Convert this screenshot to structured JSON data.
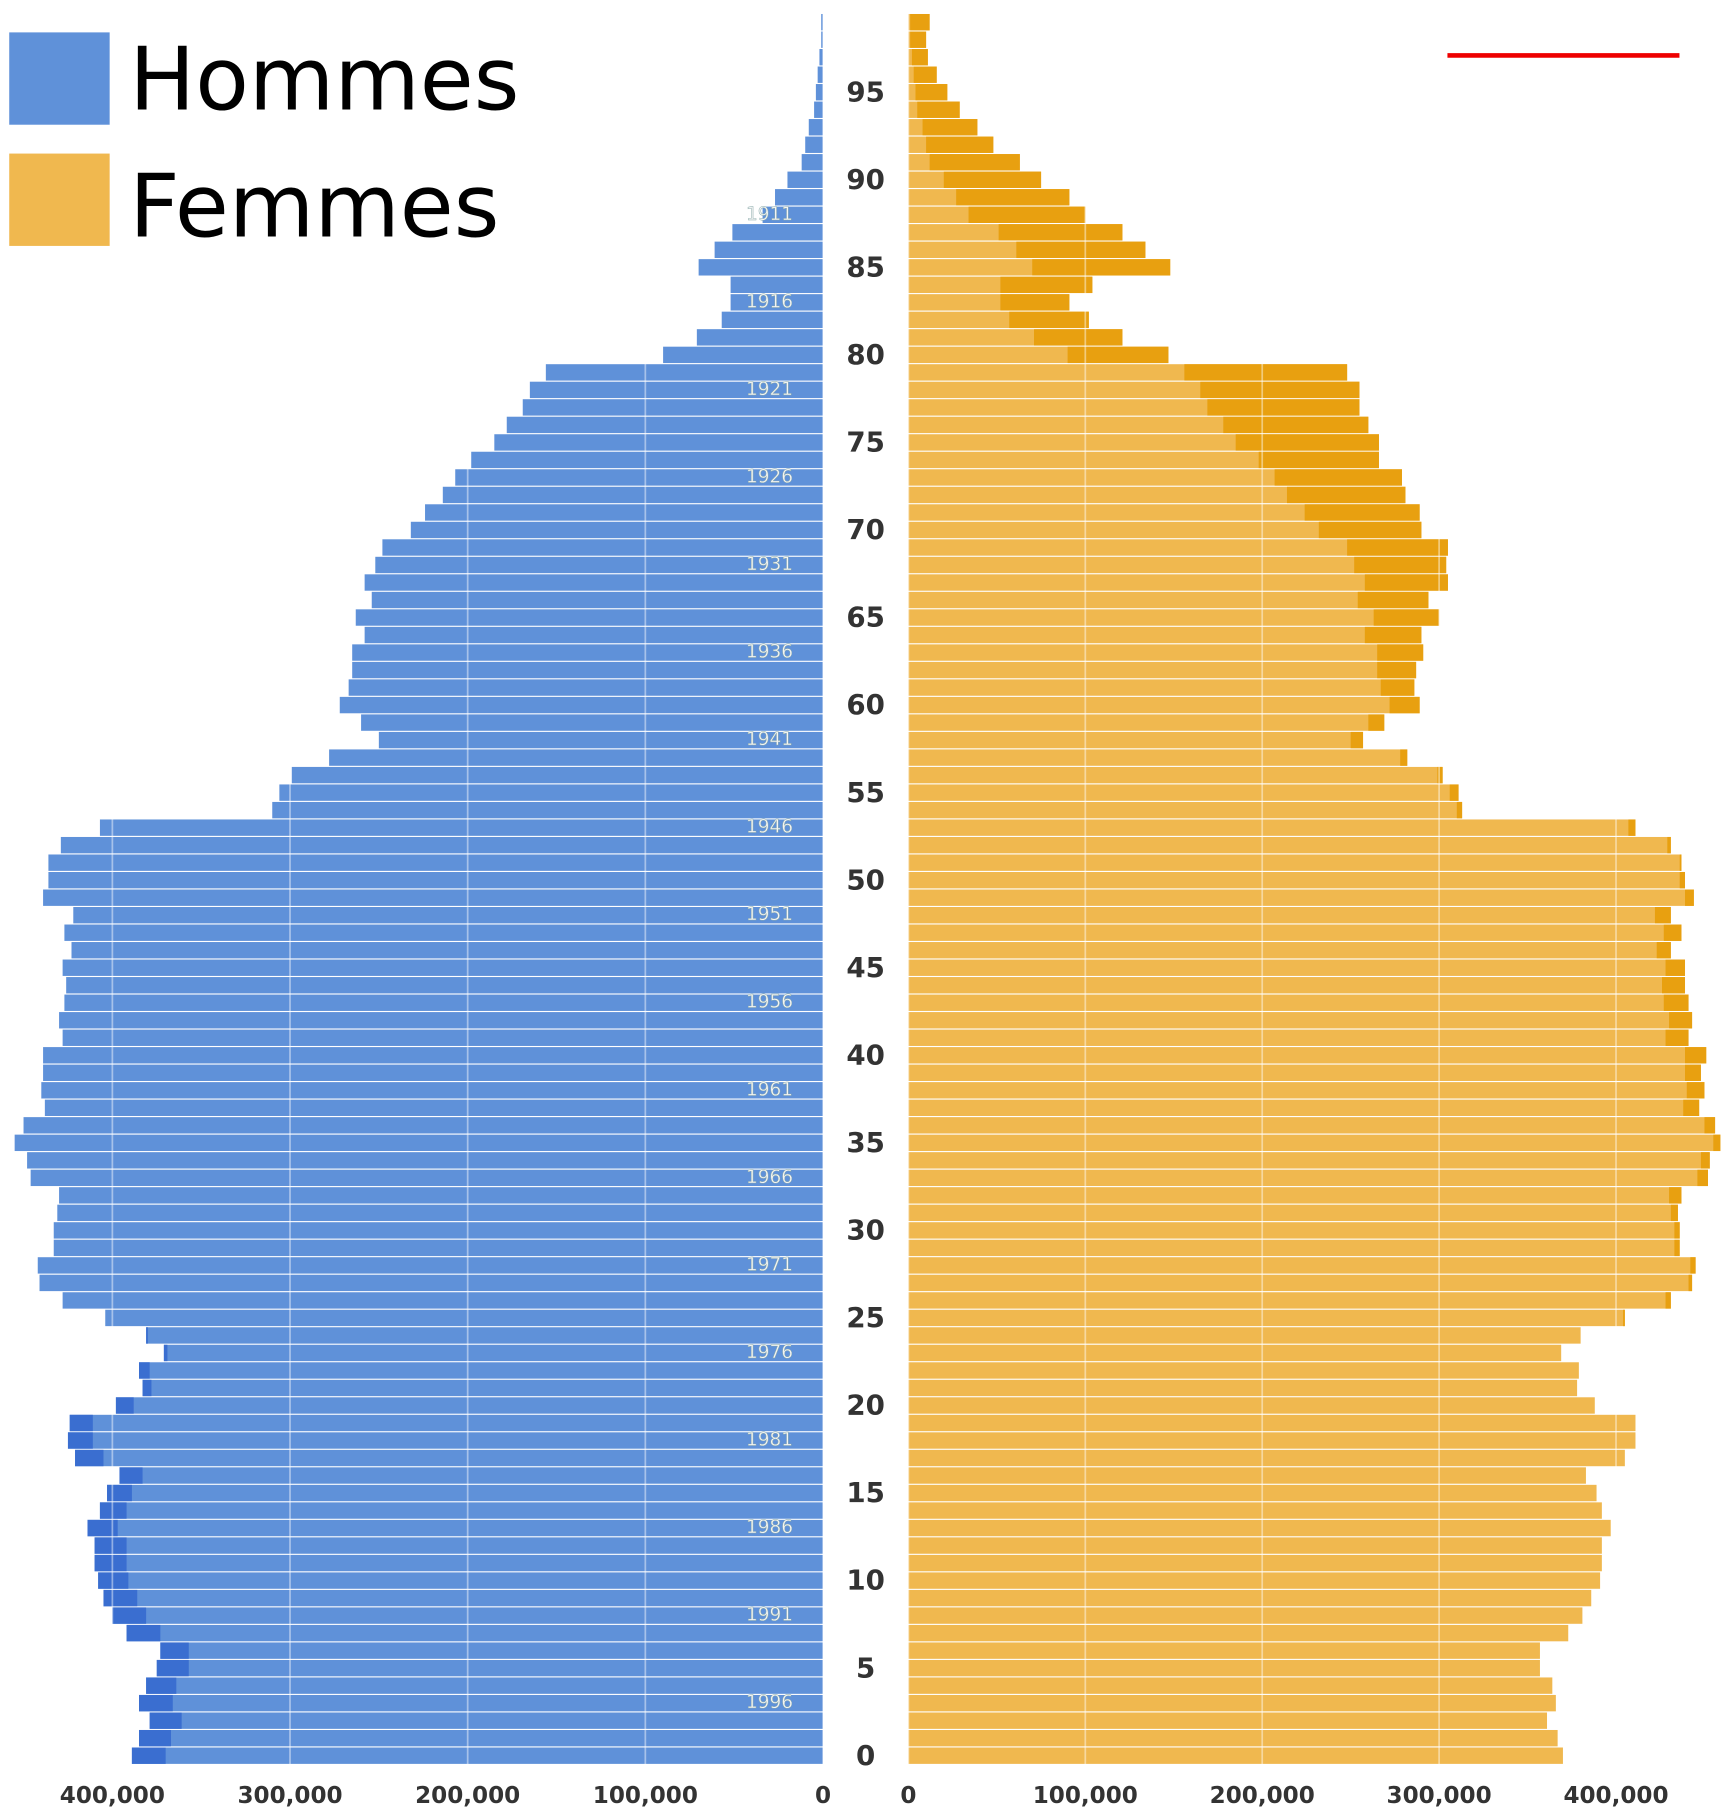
{
  "chart_data": {
    "type": "pyramid",
    "categories": [
      "0",
      null,
      null,
      null,
      null,
      "5",
      null,
      null,
      null,
      null,
      "10",
      null,
      null,
      null,
      null,
      "15",
      null,
      null,
      null,
      null,
      "20",
      null,
      null,
      null,
      null,
      "25",
      null,
      null,
      null,
      null,
      "30",
      null,
      null,
      null,
      null,
      "35",
      null,
      null,
      null,
      null,
      "40",
      null,
      null,
      null,
      null,
      "45",
      null,
      null,
      null,
      null,
      "50",
      null,
      null,
      null,
      null,
      "55",
      null,
      null,
      null,
      null,
      "60",
      null,
      null,
      null,
      null,
      "65",
      null,
      null,
      null,
      null,
      "70",
      null,
      null,
      null,
      null,
      "75",
      null,
      null,
      null,
      null,
      "80",
      null,
      null,
      null,
      null,
      "85",
      null,
      null,
      null,
      null,
      "90",
      null,
      null,
      null,
      null,
      "95",
      null,
      null,
      null,
      null
    ],
    "birth_year_labels": [
      null,
      null,
      null,
      "1996",
      null,
      null,
      null,
      null,
      "1991",
      null,
      null,
      null,
      null,
      "1986",
      null,
      null,
      null,
      null,
      "1981",
      null,
      null,
      null,
      null,
      "1976",
      null,
      null,
      null,
      null,
      "1971",
      null,
      null,
      null,
      null,
      "1966",
      null,
      null,
      null,
      null,
      "1961",
      null,
      null,
      null,
      null,
      "1956",
      null,
      null,
      null,
      null,
      "1951",
      null,
      null,
      null,
      null,
      "1946",
      null,
      null,
      null,
      null,
      "1941",
      null,
      null,
      null,
      null,
      "1936",
      null,
      null,
      null,
      null,
      "1931",
      null,
      null,
      null,
      null,
      "1926",
      null,
      null,
      null,
      null,
      "1921",
      null,
      null,
      null,
      null,
      "1916",
      null,
      null,
      null,
      null,
      "1911",
      null,
      null,
      null,
      null,
      null,
      null,
      null,
      null,
      null,
      null,
      null
    ],
    "series": [
      {
        "name": "Hommes",
        "color": "#5f91d9",
        "excess_color": "#3a6ed0",
        "side": "left",
        "values": [
          389000,
          385000,
          379000,
          385000,
          381000,
          375000,
          373000,
          392000,
          400000,
          405000,
          408000,
          410000,
          410000,
          414000,
          407000,
          403000,
          396000,
          421000,
          425000,
          424000,
          398000,
          383000,
          385000,
          371000,
          381000,
          404000,
          428000,
          441000,
          442000,
          433000,
          433000,
          431000,
          430000,
          446000,
          448000,
          455000,
          450000,
          438000,
          440000,
          439000,
          439000,
          428000,
          430000,
          427000,
          426000,
          428000,
          423000,
          427000,
          422000,
          439000,
          436000,
          436000,
          429000,
          407000,
          310000,
          306000,
          299000,
          278000,
          250000,
          260000,
          272000,
          267000,
          265000,
          265000,
          258000,
          263000,
          254000,
          258000,
          252000,
          248000,
          232000,
          224000,
          214000,
          207000,
          198000,
          185000,
          178000,
          169000,
          165000,
          156000,
          90000,
          71000,
          57000,
          52000,
          52000,
          70000,
          61000,
          51000,
          34000,
          27000,
          20000,
          12000,
          10000,
          8000,
          5000,
          4000,
          3000,
          2000,
          1000,
          1000
        ],
        "xlim": [
          0,
          460000
        ],
        "xticks": [
          0,
          {
            "value": 100000,
            "label": "100,000"
          },
          {
            "value": 200000,
            "label": "200,000"
          },
          {
            "value": 300000,
            "label": "300,000"
          },
          {
            "value": 400000,
            "label": "400,000"
          }
        ]
      },
      {
        "name": "Femmes",
        "color": "#f0b84f",
        "excess_color": "#e8a010",
        "side": "right",
        "values": [
          370000,
          367000,
          361000,
          366000,
          364000,
          357000,
          357000,
          373000,
          381000,
          386000,
          391000,
          392000,
          392000,
          397000,
          392000,
          389000,
          383000,
          405000,
          411000,
          411000,
          388000,
          378000,
          379000,
          369000,
          380000,
          405000,
          431000,
          443000,
          445000,
          436000,
          436000,
          435000,
          437000,
          452000,
          453000,
          459000,
          456000,
          447000,
          450000,
          448000,
          451000,
          441000,
          443000,
          441000,
          439000,
          439000,
          431000,
          437000,
          431000,
          444000,
          439000,
          437000,
          431000,
          411000,
          313000,
          311000,
          302000,
          282000,
          257000,
          269000,
          289000,
          286000,
          287000,
          291000,
          290000,
          300000,
          294000,
          305000,
          304000,
          305000,
          290000,
          289000,
          281000,
          279000,
          266000,
          266000,
          260000,
          255000,
          255000,
          248000,
          147000,
          121000,
          102000,
          91000,
          104000,
          148000,
          134000,
          121000,
          100000,
          91000,
          75000,
          63000,
          48000,
          39000,
          29000,
          22000,
          16000,
          11000,
          10000,
          12000
        ],
        "xlim": [
          0,
          460000
        ],
        "xticks": [
          0,
          {
            "value": 100000,
            "label": "100,000"
          },
          {
            "value": 200000,
            "label": "200,000"
          },
          {
            "value": 300000,
            "label": "300,000"
          },
          {
            "value": 400000,
            "label": "400,000"
          }
        ]
      }
    ]
  }
}
